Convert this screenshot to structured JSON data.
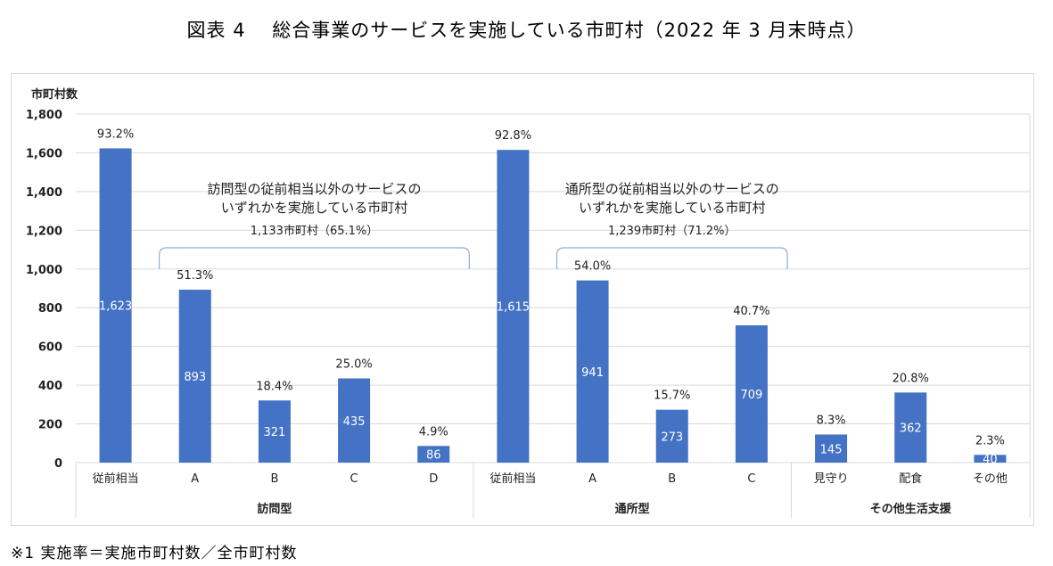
{
  "title": "図表 4　 総合事業のサービスを実施している市町村（2022 年 3 月末時点）",
  "footnote": "※1  実施率＝実施市町村数／全市町村数",
  "chart_data": {
    "type": "bar",
    "ylabel": "市町村数",
    "ylim": [
      0,
      1800
    ],
    "yticks": [
      0,
      200,
      400,
      600,
      800,
      1000,
      1200,
      1400,
      1600,
      1800
    ],
    "ytick_labels": [
      "0",
      "200",
      "400",
      "600",
      "800",
      "1,000",
      "1,200",
      "1,400",
      "1,600",
      "1,800"
    ],
    "bar_color": "#4472c4",
    "grid_color": "#d9d9d9",
    "categories": [
      "従前相当",
      "A",
      "B",
      "C",
      "D",
      "従前相当",
      "A",
      "B",
      "C",
      "見守り",
      "配食",
      "その他"
    ],
    "values": [
      1623,
      893,
      321,
      435,
      86,
      1615,
      941,
      273,
      709,
      145,
      362,
      40
    ],
    "value_labels": [
      "1,623",
      "893",
      "321",
      "435",
      "86",
      "1,615",
      "941",
      "273",
      "709",
      "145",
      "362",
      "40"
    ],
    "percent_labels": [
      "93.2%",
      "51.3%",
      "18.4%",
      "25.0%",
      "4.9%",
      "92.8%",
      "54.0%",
      "15.7%",
      "40.7%",
      "8.3%",
      "20.8%",
      "2.3%"
    ],
    "groups": [
      {
        "name": "訪問型",
        "start": 0,
        "end": 4
      },
      {
        "name": "通所型",
        "start": 5,
        "end": 8
      },
      {
        "name": "その他生活支援",
        "start": 9,
        "end": 11
      }
    ],
    "annotations": [
      {
        "line1": "訪問型の従前相当以外のサービスの",
        "line2": "いずれかを実施している市町村",
        "value": "1,133市町村（65.1%）",
        "start": 1,
        "end": 4
      },
      {
        "line1": "通所型の従前相当以外のサービスの",
        "line2": "いずれかを実施している市町村",
        "value": "1,239市町村（71.2%）",
        "start": 6,
        "end": 8
      }
    ]
  }
}
